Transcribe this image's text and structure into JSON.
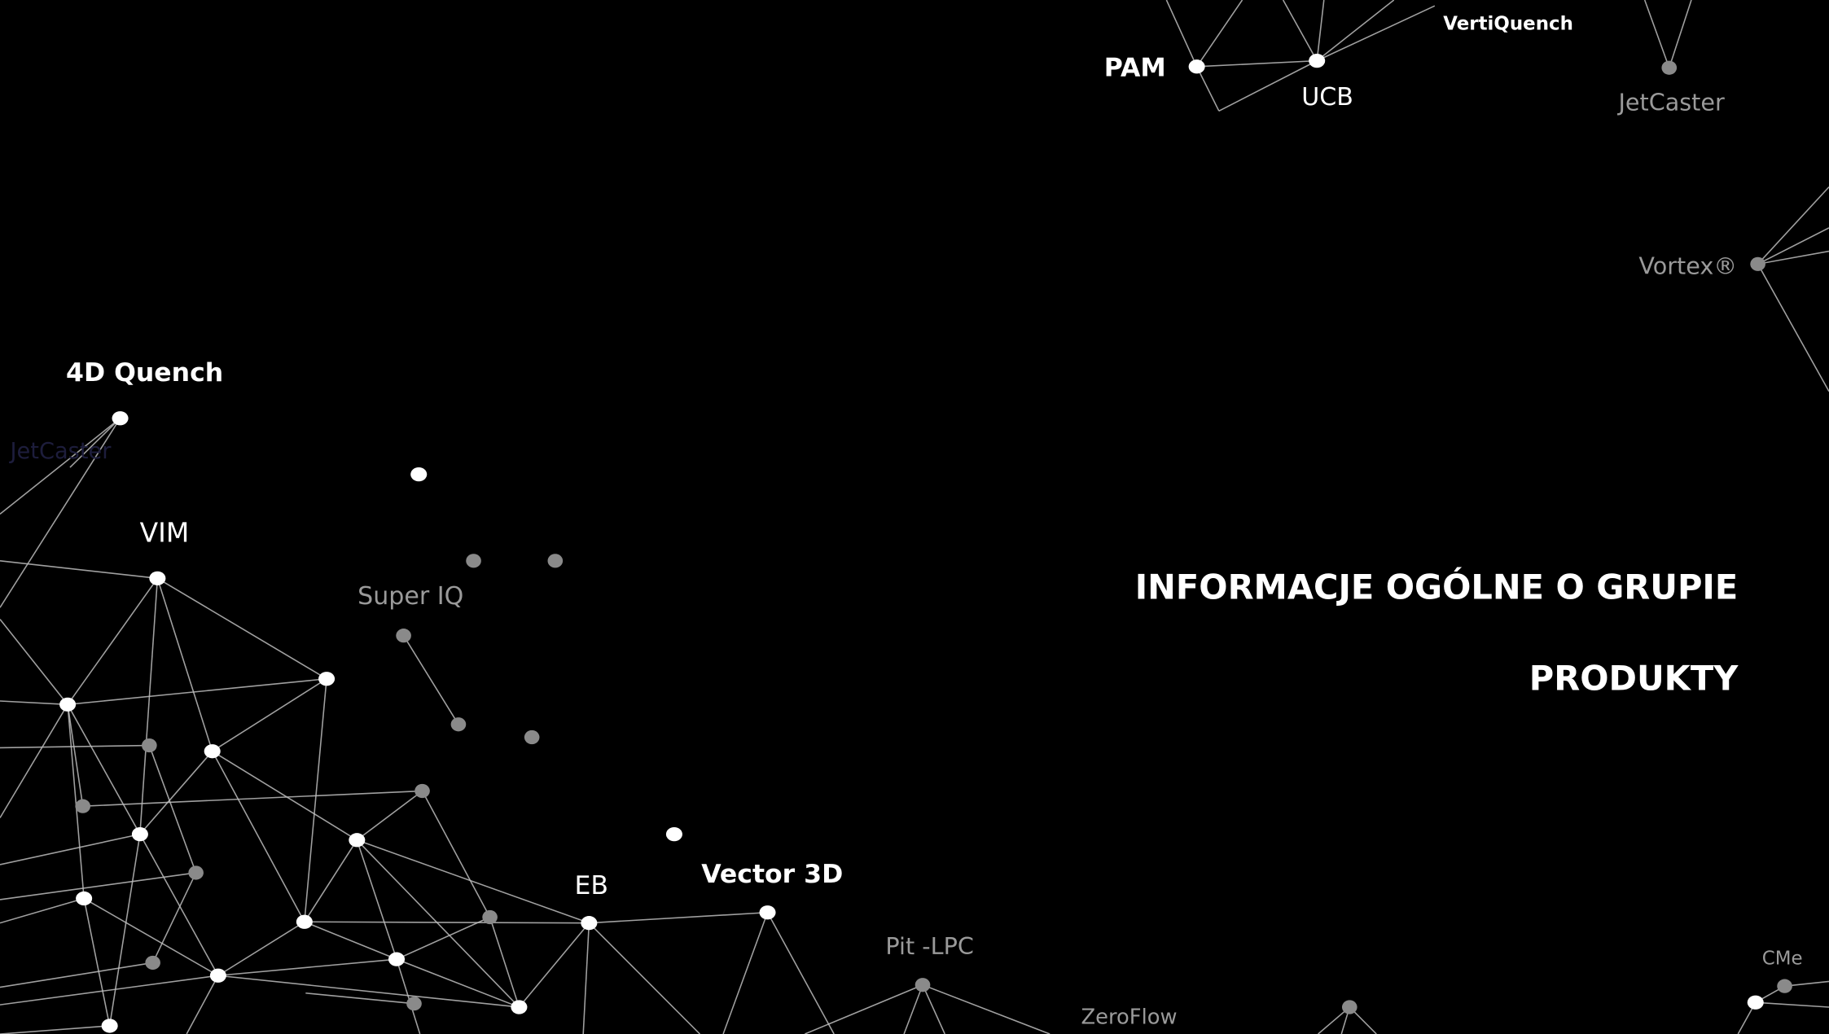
{
  "network_labels": [
    "VertiQuench",
    "PAM",
    "UCB",
    "JetCaster",
    "Vortex®",
    "4D Quench",
    "JetCaster",
    "VIM",
    "Super IQ",
    "EB",
    "Vector 3D",
    "Pit -LPC",
    "ZeroFlow",
    "CMe"
  ],
  "menu": {
    "items": [
      "INFORMACJE OGÓLNE O GRUPIE",
      "PRODUKTY"
    ]
  }
}
